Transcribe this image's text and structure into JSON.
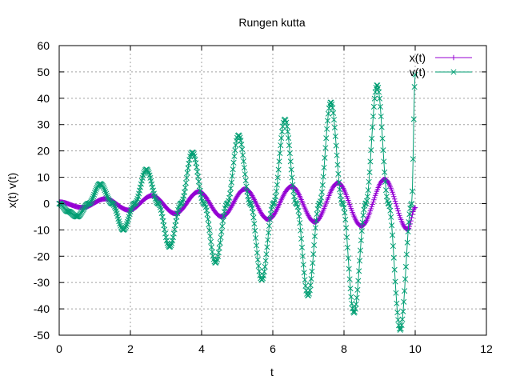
{
  "chart_data": {
    "type": "line",
    "title": "Rungen kutta",
    "xlabel": "t",
    "ylabel": "x(t) v(t)",
    "xlim": [
      0,
      12
    ],
    "ylim": [
      -50,
      60
    ],
    "x_ticks": [
      0,
      2,
      4,
      6,
      8,
      10,
      12
    ],
    "y_ticks": [
      -50,
      -40,
      -30,
      -20,
      -10,
      0,
      10,
      20,
      30,
      40,
      50,
      60
    ],
    "grid": true,
    "legend_position": "top-right",
    "x_range": [
      0,
      10
    ],
    "step": 0.02,
    "series": [
      {
        "name": "x(t)",
        "marker": "plus",
        "color": "#9400d3",
        "t": [
          0,
          0.65,
          1.3,
          1.96,
          2.61,
          3.26,
          3.92,
          4.57,
          5.22,
          5.87,
          6.53,
          7.18,
          7.83,
          8.49,
          9.14,
          9.79,
          10.0
        ],
        "values": [
          0.6,
          -1.5,
          1.8,
          -2.5,
          3.0,
          -3.8,
          4.5,
          -5.0,
          5.5,
          -6.0,
          6.5,
          -7.0,
          7.8,
          -8.5,
          9.2,
          -9.8,
          -1.5
        ]
      },
      {
        "name": "v(t)",
        "marker": "cross",
        "color": "#009e73",
        "t": [
          0,
          0.25,
          0.5,
          0.83,
          1.15,
          1.49,
          1.8,
          2.12,
          2.45,
          2.78,
          3.1,
          3.42,
          3.74,
          4.07,
          4.39,
          4.72,
          5.04,
          5.37,
          5.69,
          6.02,
          6.34,
          6.66,
          6.99,
          7.31,
          7.63,
          7.96,
          8.28,
          8.61,
          8.93,
          9.25,
          9.58,
          9.9,
          10.0
        ],
        "values": [
          0,
          -3,
          -5,
          0,
          7.5,
          0,
          -10,
          0,
          13,
          0,
          -16.5,
          0,
          19.5,
          0,
          -22.5,
          0,
          26,
          0,
          -29,
          0,
          32,
          0,
          -35,
          0,
          38.5,
          0,
          -41.5,
          0,
          45,
          0,
          -48,
          0,
          49
        ]
      }
    ]
  }
}
